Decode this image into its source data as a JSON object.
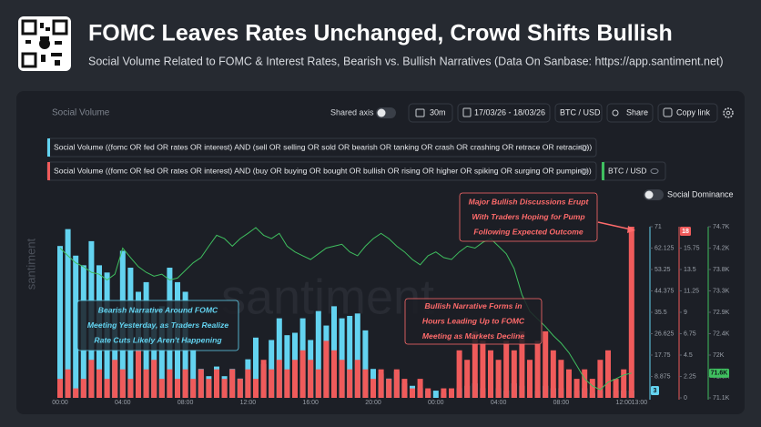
{
  "header": {
    "title": "FOMC Leaves Rates Unchanged, Crowd Shifts Bullish",
    "subtitle": "Social Volume Related to FOMC & Interest Rates, Bearish vs. Bullish Narratives (Data On Sanbase: https://app.santiment.net)"
  },
  "toolbar": {
    "panel_title": "Social Volume",
    "shared_axis": "Shared axis",
    "interval": "30m",
    "date_range": "17/03/26 - 18/03/26",
    "pair": "BTC / USD",
    "share": "Share",
    "copy_link": "Copy link",
    "social_dominance": "Social Dominance"
  },
  "watermark": "santiment",
  "chart_data": {
    "type": "bar",
    "categories": [
      "00:00",
      null,
      null,
      null,
      null,
      null,
      null,
      null,
      "04:00",
      null,
      null,
      null,
      null,
      null,
      null,
      null,
      "08:00",
      null,
      null,
      null,
      null,
      null,
      null,
      null,
      "12:00",
      null,
      null,
      null,
      null,
      null,
      null,
      null,
      "16:00",
      null,
      null,
      null,
      null,
      null,
      null,
      null,
      "20:00",
      null,
      null,
      null,
      null,
      null,
      null,
      null,
      "00:00",
      null,
      null,
      null,
      null,
      null,
      null,
      null,
      "04:00",
      null,
      null,
      null,
      null,
      null,
      null,
      null,
      "08:00",
      null,
      null,
      null,
      null,
      null,
      null,
      null,
      "12:00",
      null,
      "13:00"
    ],
    "series": [
      {
        "name": "Social Volume ((fomc OR fed OR rates OR interest) AND (sell OR selling OR sold OR bearish OR tanking OR crash OR crashing OR retrace OR retracing))",
        "color": "#63d3f0",
        "axis": "y",
        "values": [
          63,
          70,
          59,
          55,
          65,
          55,
          52,
          37,
          61,
          54,
          44,
          48,
          37,
          38,
          54,
          48,
          44,
          20,
          12,
          9,
          13,
          9,
          12,
          8,
          16,
          25,
          14,
          24,
          33,
          26,
          27,
          33,
          24,
          36,
          30,
          38,
          33,
          34,
          35,
          28,
          12,
          10,
          8,
          11,
          6,
          5,
          4,
          3,
          3,
          2,
          3,
          4,
          5,
          6,
          4,
          5,
          4,
          3,
          6,
          5,
          4,
          3,
          5,
          4,
          4,
          5,
          3,
          4,
          2,
          3,
          4,
          3,
          3,
          3,
          null
        ]
      },
      {
        "name": "Social Volume ((fomc OR fed OR rates OR interest) AND (buy OR buying OR bought OR bullish OR rising OR higher OR spiking OR surging OR pumping))",
        "color": "#ef5b5b",
        "axis": "y2",
        "values": [
          2,
          3,
          1,
          2,
          4,
          3,
          2,
          4,
          3,
          2,
          5,
          3,
          4,
          2,
          3,
          2,
          3,
          2,
          3,
          2,
          3,
          2,
          3,
          2,
          3,
          2,
          4,
          3,
          4,
          3,
          4,
          5,
          4,
          3,
          6,
          5,
          4,
          3,
          4,
          3,
          2,
          3,
          2,
          3,
          2,
          1,
          2,
          1,
          0,
          1,
          1,
          5,
          4,
          7,
          6,
          5,
          4,
          6,
          5,
          7,
          4,
          6,
          7,
          5,
          4,
          3,
          2,
          3,
          2,
          4,
          5,
          2,
          3,
          18,
          null
        ]
      },
      {
        "name": "BTC / USD",
        "color": "#3fbf5f",
        "axis": "y3",
        "type": "line",
        "values": [
          74250,
          74090,
          73940,
          73860,
          73740,
          73700,
          73580,
          73700,
          74250,
          74050,
          73860,
          73740,
          73660,
          73700,
          73580,
          73620,
          73780,
          73940,
          74050,
          74290,
          74520,
          74450,
          74290,
          74450,
          74560,
          74680,
          74520,
          74450,
          74560,
          74290,
          74170,
          74090,
          74010,
          74130,
          74250,
          74290,
          74330,
          74170,
          74090,
          74290,
          74450,
          74560,
          74450,
          74290,
          74170,
          74010,
          73900,
          74090,
          74170,
          74050,
          74010,
          74170,
          74290,
          74250,
          74370,
          74450,
          74290,
          74130,
          73820,
          73270,
          72920,
          72760,
          72600,
          72410,
          72250,
          72050,
          71780,
          71500,
          71350,
          71270,
          71430,
          71500,
          71580,
          71620,
          null
        ],
        "value_labels": [
          null,
          null,
          null,
          null,
          null,
          null,
          null,
          null,
          null,
          null,
          null,
          null,
          null,
          null,
          null,
          null,
          null,
          null,
          null,
          null,
          null,
          null,
          null,
          null,
          null,
          null,
          null,
          null,
          null,
          null,
          null,
          null,
          null,
          null,
          null,
          null,
          null,
          null,
          null,
          null,
          null,
          null,
          null,
          null,
          null,
          null,
          null,
          null,
          null,
          null,
          null,
          null,
          null,
          null,
          null,
          null,
          null,
          null,
          null,
          null,
          null,
          null,
          null,
          null,
          null,
          null,
          null,
          null,
          null,
          null,
          null,
          null,
          null,
          "71.6K",
          null
        ]
      }
    ],
    "ylim": [
      0,
      71
    ],
    "yticks": [
      8.875,
      17.75,
      26.625,
      35.5,
      44.375,
      53.25,
      62.125,
      71
    ],
    "y2lim": [
      0,
      18
    ],
    "y2ticks": [
      0,
      2.25,
      4.5,
      6.75,
      9,
      11.25,
      13.5,
      15.75
    ],
    "y3lim": [
      71100,
      74700
    ],
    "y3ticks": [
      {
        "value": 71100,
        "label": "71.1K"
      },
      {
        "value": 71550,
        "label": "71.5K"
      },
      {
        "value": 72000,
        "label": "72K"
      },
      {
        "value": 72450,
        "label": "72.4K"
      },
      {
        "value": 72900,
        "label": "72.9K"
      },
      {
        "value": 73350,
        "label": "73.3K"
      },
      {
        "value": 73800,
        "label": "73.8K"
      },
      {
        "value": 74250,
        "label": "74.2K"
      },
      {
        "value": 74700,
        "label": "74.7K"
      }
    ],
    "annotations": [
      {
        "lines": [
          "Bearish Narrative Around FOMC",
          "Meeting Yesterday, as Traders Realize",
          "Rate Cuts Likely Aren't Happening"
        ],
        "color": "#63d3f0"
      },
      {
        "lines": [
          "Bullish Narrative Forms in",
          "Hours Leading Up to  FOMC",
          "Meeting as Markets Decline"
        ],
        "color": "#ff6b6b"
      },
      {
        "lines": [
          "Major Bullish Discussions Erupt",
          "With Traders Hoping for Pump",
          "Following Expected Outcome"
        ],
        "color": "#ff6b6b"
      }
    ]
  }
}
